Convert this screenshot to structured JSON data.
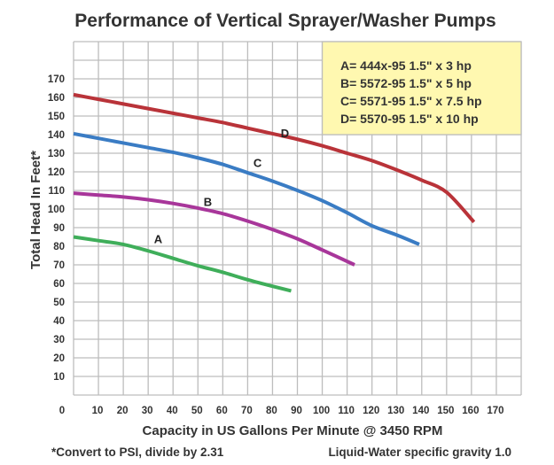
{
  "chart_data": {
    "type": "line",
    "title": "Performance of Vertical Sprayer/Washer Pumps",
    "xlabel": "Capacity in US Gallons Per Minute @ 3450 RPM",
    "ylabel": "Total Head In Feet*",
    "xlim": [
      0,
      180
    ],
    "ylim": [
      0,
      190
    ],
    "x_ticks": [
      "0",
      "10",
      "20",
      "30",
      "40",
      "50",
      "60",
      "70",
      "80",
      "90",
      "100",
      "110",
      "120",
      "130",
      "140",
      "150",
      "160",
      "170"
    ],
    "y_ticks": [
      "170",
      "160",
      "150",
      "140",
      "130",
      "120",
      "110",
      "100",
      "90",
      "80",
      "70",
      "60",
      "50",
      "40",
      "30",
      "20",
      "10"
    ],
    "grid": true,
    "legend_position": "top-right",
    "legend": [
      "A= 444x-95  1.5\" x 3 hp",
      "B= 5572-95  1.5\" x 5 hp",
      "C= 5571-95  1.5\" x 7.5 hp",
      "D= 5570-95  1.5\" x 10 hp"
    ],
    "footnote_left": "*Convert to PSI, divide by 2.31",
    "footnote_right": "Liquid-Water specific gravity 1.0",
    "series": [
      {
        "name": "A",
        "color": "#3fae5a",
        "x": [
          0,
          10,
          20,
          30,
          40,
          50,
          60,
          70,
          80,
          87.5
        ],
        "y": [
          85,
          83,
          81,
          77.5,
          73.5,
          69.5,
          66,
          62,
          58.5,
          56
        ]
      },
      {
        "name": "B",
        "color": "#a8369a",
        "x": [
          0,
          10,
          20,
          30,
          40,
          50,
          60,
          70,
          80,
          90,
          100,
          113
        ],
        "y": [
          108.5,
          107.5,
          106.5,
          105,
          103,
          100.5,
          97.5,
          93.5,
          89,
          84,
          78,
          70
        ]
      },
      {
        "name": "C",
        "color": "#3a7cc4",
        "x": [
          0,
          10,
          20,
          30,
          40,
          50,
          60,
          70,
          80,
          90,
          100,
          110,
          120,
          130,
          139
        ],
        "y": [
          140.5,
          138,
          135.5,
          133,
          130.5,
          127.5,
          124,
          119.5,
          115,
          110,
          104.5,
          98,
          91,
          86,
          81
        ]
      },
      {
        "name": "D",
        "color": "#b93339",
        "x": [
          0,
          10,
          20,
          30,
          40,
          50,
          60,
          70,
          80,
          90,
          100,
          110,
          120,
          130,
          140,
          150,
          161
        ],
        "y": [
          161.5,
          159,
          156.5,
          154,
          151.5,
          149,
          146.5,
          143.5,
          140.5,
          137.5,
          134,
          130,
          126,
          121,
          115.5,
          109,
          93
        ]
      }
    ],
    "curve_labels": [
      {
        "text": "A",
        "x": 34,
        "y": 84
      },
      {
        "text": "B",
        "x": 54,
        "y": 104
      },
      {
        "text": "C",
        "x": 74,
        "y": 125
      },
      {
        "text": "D",
        "x": 85,
        "y": 141
      }
    ]
  },
  "colors": {
    "legend_bg": "#fff8b0",
    "grid": "#bdbdbd"
  }
}
